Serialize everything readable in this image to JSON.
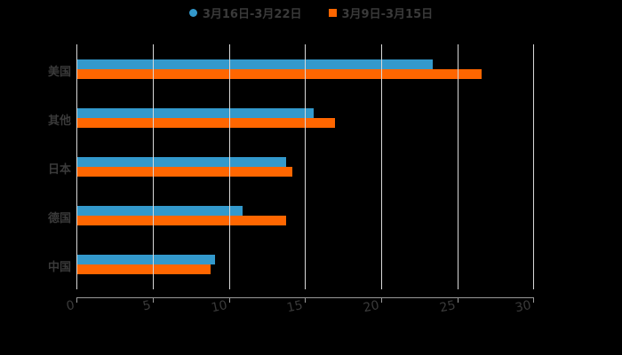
{
  "chart_data": {
    "type": "bar",
    "orientation": "horizontal",
    "title": "",
    "categories": [
      "美国",
      "其他",
      "日本",
      "德国",
      "中国"
    ],
    "series": [
      {
        "name": "3月16日-3月22日",
        "color": "#3399cc",
        "values": [
          23.4,
          15.6,
          13.8,
          10.9,
          9.1
        ]
      },
      {
        "name": "3月9日-3月15日",
        "color": "#ff6600",
        "values": [
          26.6,
          17.0,
          14.2,
          13.8,
          8.8
        ]
      }
    ],
    "xlabel": "",
    "ylabel": "",
    "xlim": [
      0,
      30
    ],
    "xticks": [
      "0",
      "5",
      "10",
      "15",
      "20",
      "25",
      "30"
    ],
    "grid": true,
    "legend_position": "top"
  },
  "legend": {
    "series0": "3月16日-3月22日",
    "series1": "3月9日-3月15日"
  }
}
